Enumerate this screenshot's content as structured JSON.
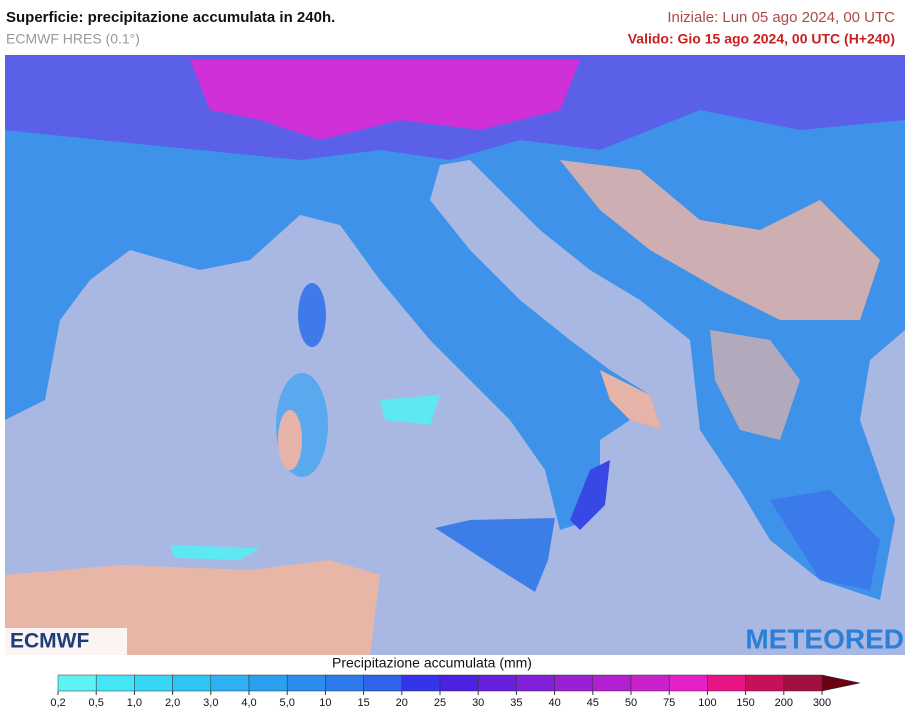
{
  "header": {
    "title": "Superficie: precipitazione accumulata in 240h.",
    "model": "ECMWF HRES (0.1°)",
    "initial": "Iniziale: Lun 05 ago 2024, 00 UTC",
    "valid": "Valido: Gio 15 ago 2024, 00 UTC (H+240)"
  },
  "logos": {
    "left": "ECMWF",
    "right": "METEORED"
  },
  "legend": {
    "title": "Precipitazione accumulata (mm)",
    "ticks": [
      {
        "value": 0.2,
        "label": "0,2"
      },
      {
        "value": 0.5,
        "label": "0,5"
      },
      {
        "value": 1,
        "label": "1,0"
      },
      {
        "value": 2,
        "label": "2,0"
      },
      {
        "value": 3,
        "label": "3,0"
      },
      {
        "value": 4,
        "label": "4,0"
      },
      {
        "value": 5,
        "label": "5,0"
      },
      10,
      15,
      20,
      25,
      30,
      35,
      40,
      45,
      50,
      75,
      100,
      150,
      200,
      300
    ],
    "colors": [
      "#5ef2f2",
      "#44e6f6",
      "#38d6f6",
      "#30c4f4",
      "#2cb2f2",
      "#2aa0f0",
      "#2a8eee",
      "#2c7aec",
      "#3064ea",
      "#3434ea",
      "#4c22e2",
      "#6620de",
      "#8020da",
      "#9a20d6",
      "#b220d2",
      "#ca20ce",
      "#e420c8",
      "#e81484",
      "#c8105a",
      "#a01040"
    ],
    "arrow_color": "#6a0010"
  }
}
